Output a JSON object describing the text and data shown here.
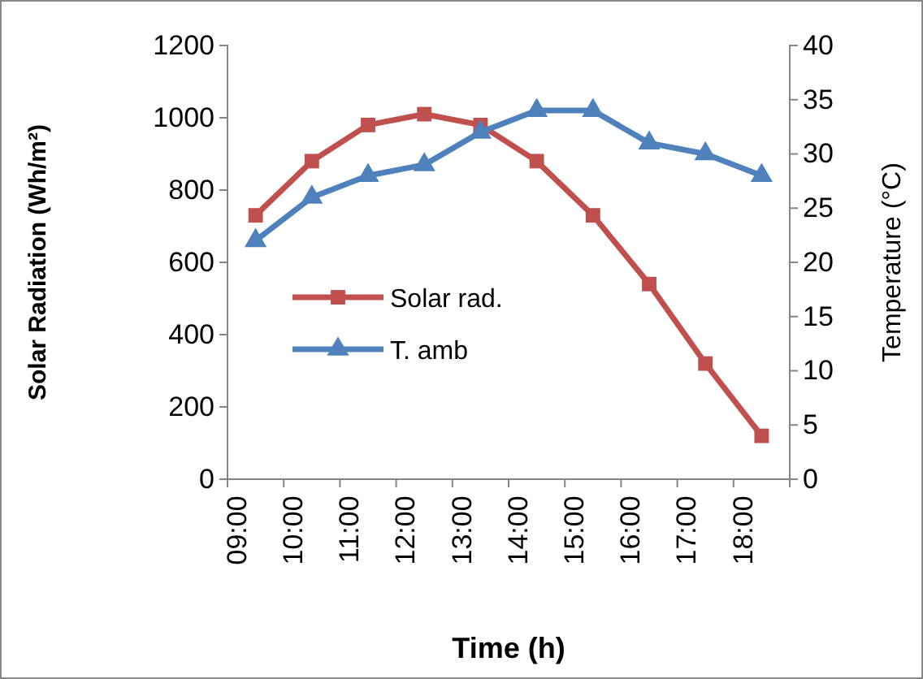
{
  "chart_data": {
    "type": "line",
    "xlabel": "Time (h)",
    "ylabel": "Solar Radiation (Wh/m²)",
    "y2label": "Temperature (°C)",
    "categories": [
      "09:00",
      "10:00",
      "11:00",
      "12:00",
      "13:00",
      "14:00",
      "15:00",
      "16:00",
      "17:00",
      "18:00"
    ],
    "series": [
      {
        "name": "Solar rad.",
        "color": "#c0504d",
        "marker": "square",
        "values": [
          730,
          880,
          980,
          1010,
          980,
          880,
          730,
          540,
          320,
          120
        ]
      },
      {
        "name": "T. amb",
        "color": "#4f81bd",
        "marker": "triangle",
        "axis": "y2",
        "values": [
          22,
          26,
          28,
          29,
          32,
          34,
          34,
          31,
          30,
          28
        ]
      }
    ],
    "ylim": [
      0,
      1200
    ],
    "yticks": [
      0,
      200,
      400,
      600,
      800,
      1000,
      1200
    ],
    "y2lim": [
      0,
      40
    ],
    "y2ticks": [
      0,
      5,
      10,
      15,
      20,
      25,
      30,
      35,
      40
    ],
    "grid": false,
    "legend": "center",
    "line_style": "solid"
  }
}
